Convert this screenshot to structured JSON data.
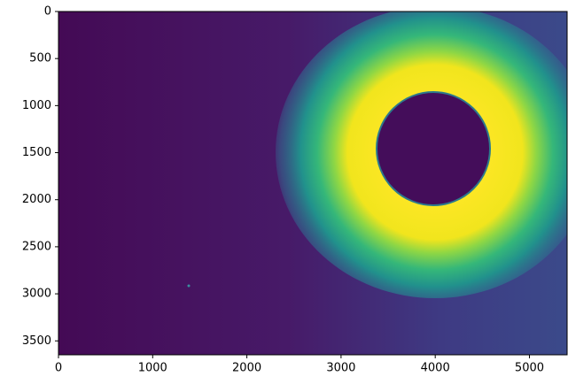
{
  "chart_data": {
    "type": "image",
    "colormap": "viridis",
    "xlim": [
      0,
      5400
    ],
    "xticks": [
      0,
      1000,
      2000,
      3000,
      4000,
      5000
    ],
    "ylim": [
      0,
      3648
    ],
    "y_inverted": true,
    "yticks": [
      0,
      500,
      1000,
      1500,
      2000,
      2500,
      3000,
      3500
    ]
  }
}
